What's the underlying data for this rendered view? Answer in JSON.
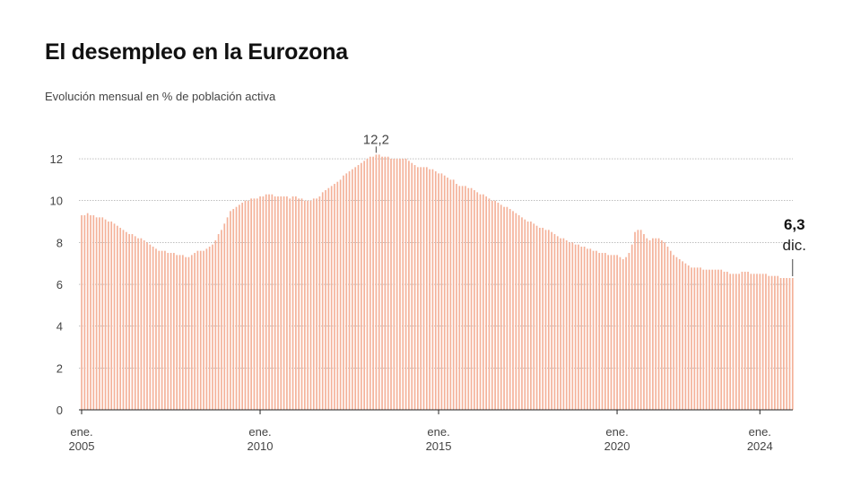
{
  "chart_data": {
    "type": "bar",
    "title": "El desempleo en la Eurozona",
    "subtitle": "Evolución mensual en % de población activa",
    "xlabel": "",
    "ylabel": "",
    "ylim": [
      0,
      12.2
    ],
    "yticks": [
      0,
      2,
      4,
      6,
      8,
      10,
      12
    ],
    "grid": true,
    "bar_color": "#f4b29a",
    "start": "2005-01",
    "end": "2024-12",
    "xticks": [
      {
        "month": "ene.",
        "year": "2005",
        "index": 0
      },
      {
        "month": "ene.",
        "year": "2010",
        "index": 60
      },
      {
        "month": "ene.",
        "year": "2015",
        "index": 120
      },
      {
        "month": "ene.",
        "year": "2020",
        "index": 180
      },
      {
        "month": "ene.",
        "year": "2024",
        "index": 228
      }
    ],
    "annotations": [
      {
        "text": "12,2",
        "index": 99,
        "value": 12.2
      },
      {
        "text": "6,3",
        "subtext": "dic.",
        "index": 239,
        "value": 6.3
      }
    ],
    "values": [
      9.3,
      9.3,
      9.4,
      9.3,
      9.3,
      9.2,
      9.2,
      9.2,
      9.1,
      9.0,
      9.0,
      8.9,
      8.8,
      8.7,
      8.6,
      8.5,
      8.4,
      8.4,
      8.3,
      8.2,
      8.2,
      8.1,
      8.0,
      7.9,
      7.8,
      7.7,
      7.6,
      7.6,
      7.6,
      7.5,
      7.5,
      7.5,
      7.4,
      7.4,
      7.4,
      7.3,
      7.3,
      7.4,
      7.5,
      7.6,
      7.6,
      7.6,
      7.7,
      7.8,
      7.9,
      8.1,
      8.4,
      8.6,
      8.9,
      9.2,
      9.5,
      9.6,
      9.7,
      9.8,
      9.9,
      10.0,
      10.0,
      10.1,
      10.1,
      10.1,
      10.2,
      10.2,
      10.3,
      10.3,
      10.3,
      10.2,
      10.2,
      10.2,
      10.2,
      10.2,
      10.1,
      10.2,
      10.2,
      10.1,
      10.1,
      10.0,
      10.0,
      10.0,
      10.1,
      10.1,
      10.2,
      10.4,
      10.5,
      10.6,
      10.7,
      10.8,
      10.9,
      11.0,
      11.2,
      11.3,
      11.4,
      11.5,
      11.6,
      11.7,
      11.8,
      11.9,
      12.0,
      12.1,
      12.1,
      12.2,
      12.2,
      12.1,
      12.1,
      12.1,
      12.0,
      12.0,
      12.0,
      12.0,
      12.0,
      12.0,
      11.9,
      11.8,
      11.7,
      11.6,
      11.6,
      11.6,
      11.6,
      11.5,
      11.5,
      11.4,
      11.3,
      11.3,
      11.2,
      11.1,
      11.0,
      11.0,
      10.8,
      10.7,
      10.7,
      10.7,
      10.6,
      10.6,
      10.5,
      10.4,
      10.3,
      10.3,
      10.2,
      10.1,
      10.0,
      10.0,
      9.9,
      9.8,
      9.7,
      9.7,
      9.6,
      9.5,
      9.4,
      9.3,
      9.2,
      9.1,
      9.0,
      9.0,
      8.9,
      8.8,
      8.7,
      8.7,
      8.6,
      8.6,
      8.5,
      8.4,
      8.3,
      8.2,
      8.2,
      8.1,
      8.0,
      8.0,
      7.9,
      7.9,
      7.8,
      7.8,
      7.7,
      7.7,
      7.6,
      7.6,
      7.5,
      7.5,
      7.5,
      7.4,
      7.4,
      7.4,
      7.4,
      7.3,
      7.2,
      7.3,
      7.5,
      7.9,
      8.5,
      8.6,
      8.6,
      8.4,
      8.2,
      8.1,
      8.2,
      8.2,
      8.2,
      8.1,
      8.0,
      7.8,
      7.6,
      7.4,
      7.3,
      7.2,
      7.1,
      7.0,
      6.9,
      6.8,
      6.8,
      6.8,
      6.8,
      6.7,
      6.7,
      6.7,
      6.7,
      6.7,
      6.7,
      6.7,
      6.6,
      6.6,
      6.5,
      6.5,
      6.5,
      6.5,
      6.6,
      6.6,
      6.6,
      6.5,
      6.5,
      6.5,
      6.5,
      6.5,
      6.5,
      6.4,
      6.4,
      6.4,
      6.4,
      6.3,
      6.3,
      6.3,
      6.3,
      6.3
    ]
  }
}
